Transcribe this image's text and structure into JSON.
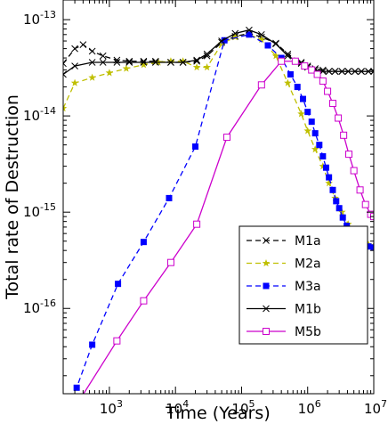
{
  "chart_data": {
    "type": "line",
    "xlabel": "Time (Years)",
    "ylabel": "Total rate of Destruction",
    "xscale": "log",
    "yscale": "log",
    "xlim": [
      200,
      10000000
    ],
    "ylim": [
      1.3e-17,
      1.6e-13
    ],
    "legend_position": "lower-right",
    "xticks": [
      {
        "value": 1000,
        "base": "10",
        "exp": "3"
      },
      {
        "value": 10000,
        "base": "10",
        "exp": "4"
      },
      {
        "value": 100000,
        "base": "10",
        "exp": "5"
      },
      {
        "value": 1000000,
        "base": "10",
        "exp": "6"
      },
      {
        "value": 10000000,
        "base": "10",
        "exp": "7"
      }
    ],
    "yticks": [
      {
        "value": 1e-16,
        "base": "10",
        "exp": "-16"
      },
      {
        "value": 1e-15,
        "base": "10",
        "exp": "-15"
      },
      {
        "value": 1e-14,
        "base": "10",
        "exp": "-14"
      },
      {
        "value": 1e-13,
        "base": "10",
        "exp": "-13"
      }
    ],
    "series": [
      {
        "name": "M1a",
        "color": "#000000",
        "dash": "dashed",
        "marker": "x",
        "x": [
          200,
          300,
          400,
          550,
          800,
          1300,
          2000,
          3300,
          5000,
          8500,
          13000,
          21000,
          30000,
          50000,
          80000,
          130000,
          200000,
          330000,
          500000,
          800000,
          1000000,
          1300000,
          1700000,
          2100000,
          2600000,
          3300000,
          4100000,
          5200000,
          6500000,
          8300000,
          10000000
        ],
        "y": [
          3.5e-14,
          5e-14,
          5.5e-14,
          4.7e-14,
          4.2e-14,
          3.8e-14,
          3.7e-14,
          3.7e-14,
          3.7e-14,
          3.6e-14,
          3.6e-14,
          3.7e-14,
          4.2e-14,
          5.8e-14,
          6.7e-14,
          7.2e-14,
          6.6e-14,
          5.7e-14,
          4.4e-14,
          3.6e-14,
          3.3e-14,
          3.1e-14,
          3e-14,
          2.9e-14,
          2.9e-14,
          2.9e-14,
          2.9e-14,
          2.9e-14,
          2.9e-14,
          2.9e-14,
          2.9e-14
        ]
      },
      {
        "name": "M2a",
        "color": "#bfbf00",
        "dash": "dashed",
        "marker": "star",
        "x": [
          200,
          300,
          550,
          1000,
          1800,
          3300,
          5500,
          8500,
          13000,
          21000,
          30000,
          50000,
          80000,
          130000,
          200000,
          330000,
          500000,
          800000,
          1000000,
          1300000,
          1700000,
          2100000,
          2600000,
          3300000,
          4100000,
          5200000,
          6500000,
          8300000,
          10000000
        ],
        "y": [
          1.2e-14,
          2.2e-14,
          2.5e-14,
          2.8e-14,
          3.1e-14,
          3.4e-14,
          3.6e-14,
          3.7e-14,
          3.7e-14,
          3.2e-14,
          3.2e-14,
          5.6e-14,
          6.6e-14,
          7e-14,
          6.2e-14,
          4.2e-14,
          2.2e-14,
          1.05e-14,
          7e-15,
          4.5e-15,
          3e-15,
          2e-15,
          1.4e-15,
          1e-15,
          7.5e-16,
          6e-16,
          5e-16,
          4.6e-16,
          4.5e-16
        ]
      },
      {
        "name": "M3a",
        "color": "#0000ff",
        "dash": "dashed",
        "marker": "square",
        "x": [
          200,
          320,
          550,
          1350,
          3300,
          8000,
          20000,
          55000,
          130000,
          250000,
          400000,
          550000,
          700000,
          850000,
          1000000,
          1150000,
          1300000,
          1500000,
          1700000,
          1900000,
          2100000,
          2400000,
          2700000,
          3000000,
          3400000,
          3900000,
          4500000,
          5200000,
          6000000,
          7000000,
          8300000,
          10000000
        ],
        "y": [
          1e-17,
          1.5e-17,
          4.2e-17,
          1.8e-16,
          4.9e-16,
          1.4e-15,
          4.8e-15,
          6.1e-14,
          7e-14,
          5.4e-14,
          4e-14,
          2.7e-14,
          2e-14,
          1.5e-14,
          1.1e-14,
          8.7e-15,
          6.6e-15,
          5e-15,
          3.8e-15,
          2.9e-15,
          2.3e-15,
          1.7e-15,
          1.3e-15,
          1.1e-15,
          8.8e-16,
          7.2e-16,
          6e-16,
          5.2e-16,
          4.8e-16,
          4.5e-16,
          4.4e-16,
          4.3e-16
        ]
      },
      {
        "name": "M1b",
        "color": "#000000",
        "dash": "solid",
        "marker": "x",
        "x": [
          200,
          300,
          550,
          800,
          1300,
          2000,
          3300,
          5000,
          8500,
          13000,
          21000,
          30000,
          50000,
          80000,
          130000,
          200000,
          330000,
          500000,
          800000,
          1000000,
          1300000,
          1700000,
          2100000,
          2600000,
          3300000,
          4100000,
          5200000,
          6500000,
          8300000,
          10000000
        ],
        "y": [
          2.7e-14,
          3.3e-14,
          3.6e-14,
          3.6e-14,
          3.6e-14,
          3.6e-14,
          3.6e-14,
          3.6e-14,
          3.6e-14,
          3.6e-14,
          3.8e-14,
          4.4e-14,
          6e-14,
          7.2e-14,
          7.8e-14,
          7e-14,
          5.6e-14,
          4.2e-14,
          3.5e-14,
          3.2e-14,
          3e-14,
          2.9e-14,
          2.9e-14,
          2.9e-14,
          2.9e-14,
          2.9e-14,
          2.9e-14,
          2.9e-14,
          2.9e-14,
          2.9e-14
        ]
      },
      {
        "name": "M5b",
        "color": "#cc00cc",
        "dash": "solid",
        "marker": "square-open",
        "x": [
          320,
          1300,
          3300,
          8500,
          21000,
          60000,
          200000,
          400000,
          650000,
          900000,
          1150000,
          1400000,
          1700000,
          2000000,
          2400000,
          2900000,
          3500000,
          4200000,
          5000000,
          6200000,
          7500000,
          9000000,
          10000000
        ],
        "y": [
          1e-17,
          4.6e-17,
          1.2e-16,
          3e-16,
          7.5e-16,
          6e-15,
          2.1e-14,
          3.7e-14,
          3.7e-14,
          3.3e-14,
          3e-14,
          2.7e-14,
          2.3e-14,
          1.8e-14,
          1.35e-14,
          9.5e-15,
          6.3e-15,
          4e-15,
          2.7e-15,
          1.7e-15,
          1.2e-15,
          9.5e-16,
          9e-16
        ]
      }
    ]
  }
}
